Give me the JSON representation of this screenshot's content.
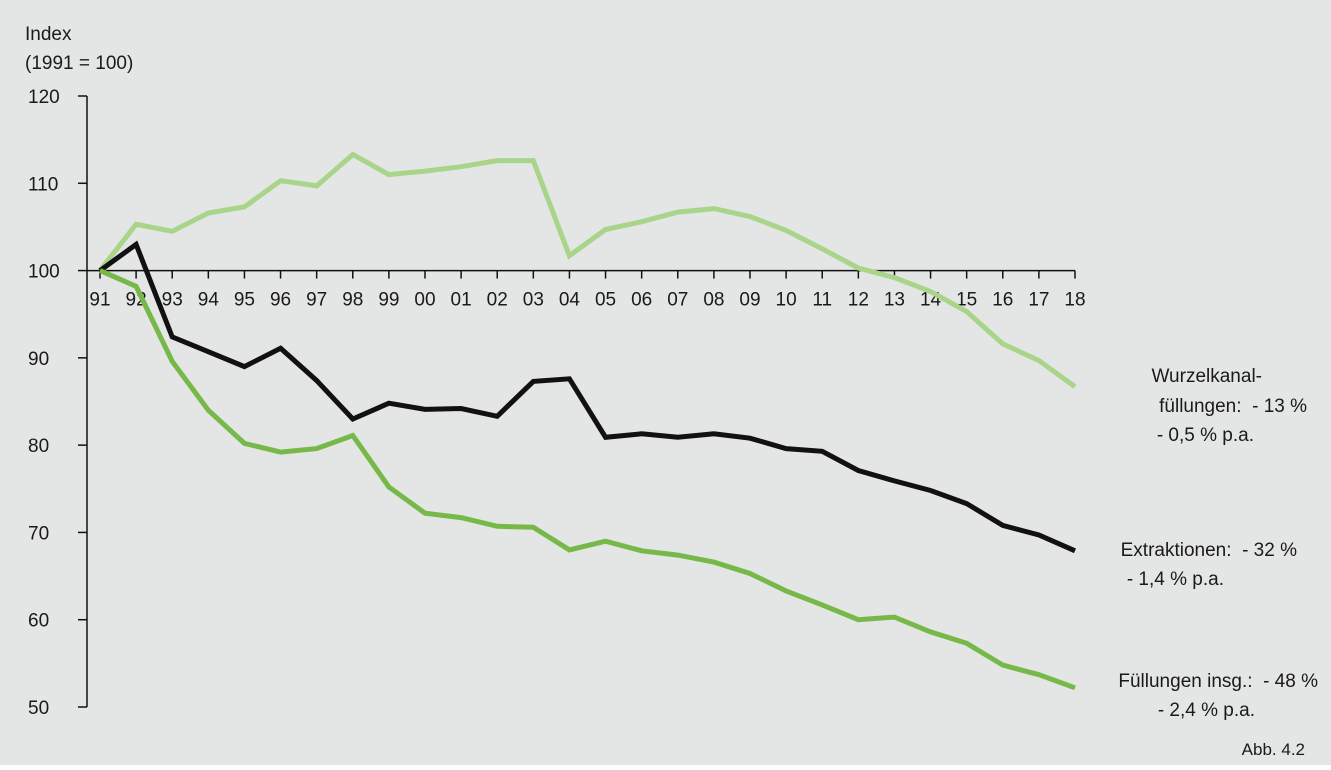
{
  "figure_label": "Abb. 4.2",
  "chart_data": {
    "type": "line",
    "ylabel_line1": "Index",
    "ylabel_line2": "(1991 = 100)",
    "xlabel": "",
    "ylim": [
      50,
      120
    ],
    "yticks": [
      50,
      60,
      70,
      80,
      90,
      100,
      110,
      120
    ],
    "x_axis_crosses_y_at": 100,
    "grid": false,
    "legend": "none",
    "categories": [
      "91",
      "92",
      "93",
      "94",
      "95",
      "96",
      "97",
      "98",
      "99",
      "00",
      "01",
      "02",
      "03",
      "04",
      "05",
      "06",
      "07",
      "08",
      "09",
      "10",
      "11",
      "12",
      "13",
      "14",
      "15",
      "16",
      "17",
      "18"
    ],
    "series": [
      {
        "id": "wurzelkanal",
        "color": "#a8d58a",
        "label_lines": [
          "Wurzelkanal-",
          "füllungen:  - 13 %",
          "- 0,5 % p.a."
        ],
        "values": [
          100,
          105.3,
          104.5,
          106.6,
          107.3,
          110.3,
          109.7,
          113.3,
          111.0,
          111.4,
          111.9,
          112.6,
          112.6,
          101.7,
          104.7,
          105.6,
          106.7,
          107.1,
          106.2,
          104.6,
          102.5,
          100.3,
          99.2,
          97.6,
          95.3,
          91.6,
          89.7,
          86.7
        ]
      },
      {
        "id": "extraktionen",
        "color": "#111111",
        "label_lines": [
          "Extraktionen:  - 32 %",
          "- 1,4 % p.a."
        ],
        "values": [
          100,
          103.0,
          92.4,
          90.7,
          89.0,
          91.1,
          87.4,
          83.0,
          84.8,
          84.1,
          84.2,
          83.3,
          87.3,
          87.6,
          80.9,
          81.3,
          80.9,
          81.3,
          80.8,
          79.6,
          79.3,
          77.1,
          75.9,
          74.8,
          73.3,
          70.8,
          69.7,
          67.9
        ]
      },
      {
        "id": "fuellungen",
        "color": "#76b948",
        "label_lines": [
          "Füllungen insg.:  - 48 %",
          "- 2,4 % p.a."
        ],
        "values": [
          100,
          98.2,
          89.6,
          84.0,
          80.2,
          79.2,
          79.6,
          81.1,
          75.2,
          72.2,
          71.7,
          70.7,
          70.6,
          68.0,
          69.0,
          67.9,
          67.4,
          66.6,
          65.3,
          63.3,
          61.7,
          60.0,
          60.3,
          58.6,
          57.3,
          54.8,
          53.7,
          52.2
        ]
      }
    ]
  }
}
